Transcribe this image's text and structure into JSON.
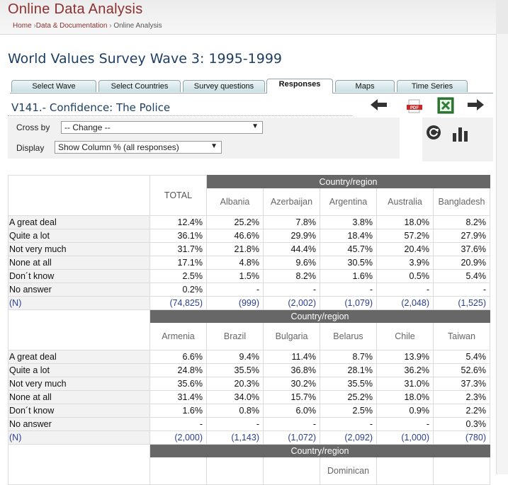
{
  "app": {
    "title": "Online Data Analysis",
    "breadcrumb": {
      "home": "Home",
      "sep1": " ›",
      "data_docs": "Data & Documentation",
      "sep2": " › ",
      "current": "Online Analysis"
    }
  },
  "page_title": "World Values Survey Wave 3: 1995-1999",
  "tabs": [
    {
      "label": "Select Wave"
    },
    {
      "label": "Select Countries"
    },
    {
      "label": "Survey questions"
    },
    {
      "label": "Responses",
      "active": true
    },
    {
      "label": "Maps"
    },
    {
      "label": "Time Series"
    }
  ],
  "variable_title": "V141.- Confidence: The Police",
  "toolbar": {
    "prev_icon": "arrow-left-icon",
    "next_icon": "arrow-right-icon",
    "pdf_label": "PDF",
    "excel_icon": "excel-icon",
    "refresh_icon": "refresh-icon",
    "chart_icon": "bar-chart-icon"
  },
  "controls": {
    "crossby_label": "Cross by",
    "crossby_value": "-- Change --",
    "display_label": "Display",
    "display_value": "Show Column % (all responses)"
  },
  "table": {
    "group_label": "Country/region",
    "total_label": "TOTAL",
    "row_labels": [
      "A great deal",
      "Quite a lot",
      "Not very much",
      "None at all",
      "Don´t know",
      "No answer",
      "(N)"
    ],
    "blocks": [
      {
        "countries": [
          "Albania",
          "Azerbaijan",
          "Argentina",
          "Australia",
          "Bangladesh"
        ],
        "rows": [
          [
            "12.4%",
            "25.2%",
            "7.8%",
            "3.8%",
            "18.0%",
            "8.2%"
          ],
          [
            "36.1%",
            "46.6%",
            "29.9%",
            "18.4%",
            "57.2%",
            "27.9%"
          ],
          [
            "31.7%",
            "21.8%",
            "44.4%",
            "45.7%",
            "20.4%",
            "37.6%"
          ],
          [
            "17.1%",
            "4.8%",
            "9.6%",
            "30.5%",
            "3.9%",
            "20.9%"
          ],
          [
            "2.5%",
            "1.5%",
            "8.2%",
            "1.6%",
            "0.5%",
            "5.4%"
          ],
          [
            "0.2%",
            "-",
            "-",
            "-",
            "-",
            "-"
          ],
          [
            "(74,825)",
            "(999)",
            "(2,002)",
            "(1,079)",
            "(2,048)",
            "(1,525)"
          ]
        ]
      },
      {
        "countries": [
          "Armenia",
          "Brazil",
          "Bulgaria",
          "Belarus",
          "Chile",
          "Taiwan"
        ],
        "rows": [
          [
            "6.6%",
            "9.4%",
            "11.4%",
            "8.7%",
            "13.9%",
            "5.4%"
          ],
          [
            "24.8%",
            "35.5%",
            "36.8%",
            "28.1%",
            "36.2%",
            "52.6%"
          ],
          [
            "35.6%",
            "20.3%",
            "30.2%",
            "35.5%",
            "31.0%",
            "37.3%"
          ],
          [
            "31.4%",
            "34.0%",
            "15.7%",
            "25.2%",
            "18.0%",
            "2.3%"
          ],
          [
            "1.6%",
            "0.8%",
            "6.0%",
            "2.5%",
            "0.9%",
            "2.2%"
          ],
          [
            "-",
            "-",
            "-",
            "-",
            "-",
            "0.3%"
          ],
          [
            "(2,000)",
            "(1,143)",
            "(1,072)",
            "(2,092)",
            "(1,000)",
            "(780)"
          ]
        ]
      },
      {
        "countries": [
          "",
          "",
          "",
          "Dominican",
          "",
          ""
        ]
      }
    ]
  }
}
